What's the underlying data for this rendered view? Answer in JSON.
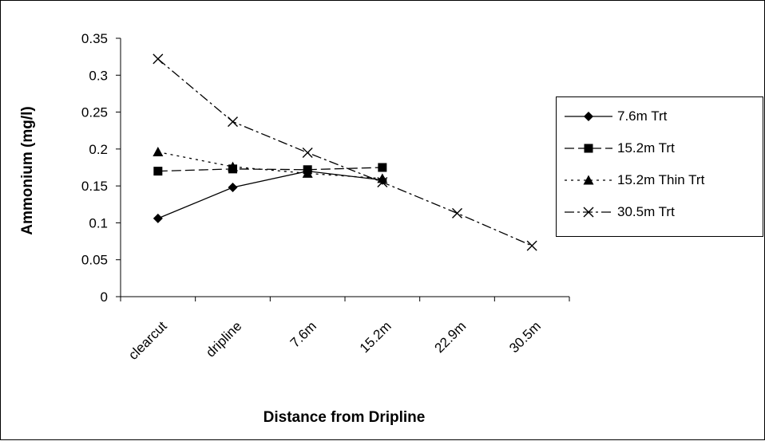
{
  "chart_data": {
    "type": "line",
    "title": "",
    "xlabel": "Distance from Dripline",
    "ylabel": "Ammonium (mg/l)",
    "categories": [
      "clearcut",
      "dripline",
      "7.6m",
      "15.2m",
      "22.9m",
      "30.5m"
    ],
    "ylim": [
      0,
      0.35
    ],
    "yticks": [
      "0",
      "0.05",
      "0.1",
      "0.15",
      "0.2",
      "0.25",
      "0.3",
      "0.35"
    ],
    "grid": false,
    "legend_position": "right",
    "series": [
      {
        "name": "7.6m Trt",
        "values": [
          0.106,
          0.148,
          0.17,
          0.158,
          null,
          null
        ],
        "marker": "diamond",
        "dash": "solid"
      },
      {
        "name": "15.2m Trt",
        "values": [
          0.17,
          0.173,
          0.172,
          0.175,
          null,
          null
        ],
        "marker": "square",
        "dash": "dashed"
      },
      {
        "name": "15.2m Thin Trt",
        "values": [
          0.196,
          0.176,
          0.167,
          0.16,
          null,
          null
        ],
        "marker": "triangle",
        "dash": "dotted"
      },
      {
        "name": "30.5m Trt",
        "values": [
          0.322,
          0.237,
          0.195,
          0.155,
          0.113,
          0.069
        ],
        "marker": "x",
        "dash": "dashdot"
      }
    ]
  }
}
